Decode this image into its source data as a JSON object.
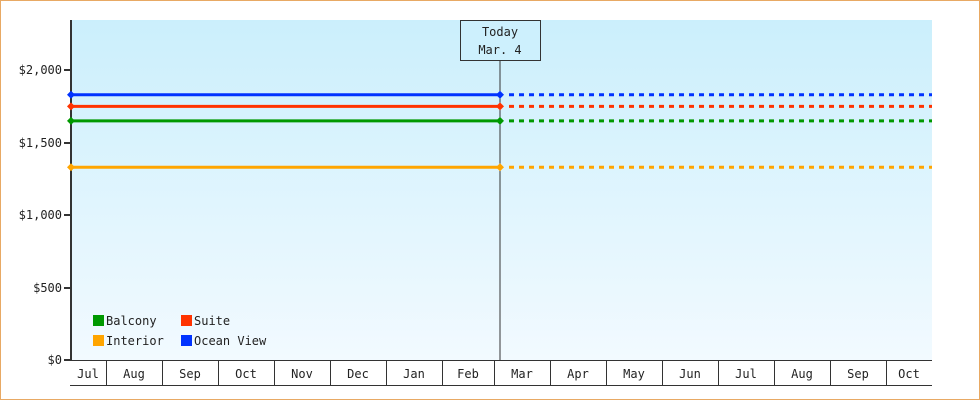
{
  "chart_data": {
    "type": "line",
    "ylim": [
      0,
      2340
    ],
    "y_ticks": [
      0,
      500,
      1000,
      1500,
      2000
    ],
    "y_tick_labels": [
      "$0",
      "$500",
      "$1,000",
      "$1,500",
      "$2,000"
    ],
    "x_tick_labels": [
      "Jul",
      "Aug",
      "Sep",
      "Oct",
      "Nov",
      "Dec",
      "Jan",
      "Feb",
      "Mar",
      "Apr",
      "May",
      "Jun",
      "Jul",
      "Aug",
      "Sep",
      "Oct"
    ],
    "grid": false,
    "legend_position": "bottom-left",
    "today_marker": {
      "line1": "Today",
      "line2": "Mar. 4"
    },
    "series": [
      {
        "name": "Balcony",
        "color": "#009900",
        "start_value": 1649,
        "today_value": 1649,
        "projected_value": 1649
      },
      {
        "name": "Suite",
        "color": "#ff3300",
        "start_value": 1749,
        "today_value": 1749,
        "projected_value": 1749
      },
      {
        "name": "Interior",
        "color": "#ffa500",
        "start_value": 1329,
        "today_value": 1329,
        "projected_value": 1329
      },
      {
        "name": "Ocean View",
        "color": "#0033ff",
        "start_value": 1829,
        "today_value": 1829,
        "projected_value": 1829
      }
    ]
  }
}
